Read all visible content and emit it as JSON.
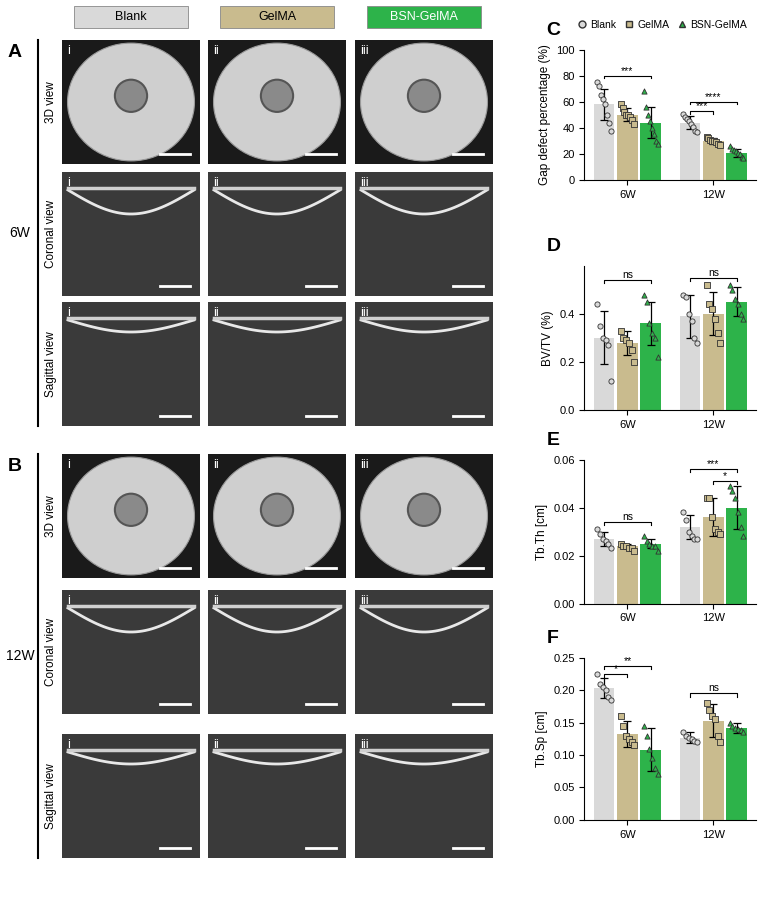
{
  "image_panels": {
    "panel_labels": [
      "A",
      "B"
    ],
    "timepoints": [
      "6W",
      "12W"
    ],
    "groups": [
      "Blank",
      "GelMA",
      "BSN-GelMA"
    ],
    "views": [
      "3D view",
      "Coronal view",
      "Sagittal view"
    ],
    "columns": [
      "i",
      "ii",
      "iii"
    ]
  },
  "chart_data": [
    {
      "type": "bar",
      "panel_label": "C",
      "ylabel": "Gap defect percentage (%)",
      "categories": [
        "6W",
        "12W"
      ],
      "ylim": [
        0,
        100
      ],
      "yticks": [
        0,
        20,
        40,
        60,
        80,
        100
      ],
      "legend": "upper center",
      "series": [
        {
          "name": "Blank",
          "color": "#d9d9d9",
          "marker": "circle",
          "values": [
            58,
            44
          ],
          "errors": [
            12,
            5
          ],
          "points": [
            [
              75,
              72,
              65,
              62,
              58,
              50,
              44,
              38
            ],
            [
              51,
              48,
              47,
              45,
              43,
              41,
              38,
              37
            ]
          ]
        },
        {
          "name": "GelMA",
          "color": "#c9bb8e",
          "marker": "square",
          "values": [
            50,
            30
          ],
          "errors": [
            5,
            2
          ],
          "points": [
            [
              58,
              55,
              52,
              50,
              50,
              48,
              46,
              43
            ],
            [
              33,
              32,
              31,
              30,
              30,
              29,
              28,
              27
            ]
          ]
        },
        {
          "name": "BSN-GelMA",
          "color": "#2db34a",
          "marker": "triangle",
          "values": [
            44,
            21
          ],
          "errors": [
            12,
            3
          ],
          "points": [
            [
              68,
              56,
              50,
              45,
              40,
              35,
              30,
              28
            ],
            [
              26,
              24,
              23,
              22,
              21,
              20,
              18,
              17
            ]
          ]
        }
      ],
      "significance": [
        {
          "category": "6W",
          "from": "Blank",
          "to": "BSN-GelMA",
          "label": "***",
          "y": 80
        },
        {
          "category": "12W",
          "from": "Blank",
          "to": "GelMA",
          "label": "***",
          "y": 53
        },
        {
          "category": "12W",
          "from": "Blank",
          "to": "BSN-GelMA",
          "label": "****",
          "y": 60
        }
      ]
    },
    {
      "type": "bar",
      "panel_label": "D",
      "ylabel": "BV/TV (%)",
      "categories": [
        "6W",
        "12W"
      ],
      "ylim": [
        0,
        0.6
      ],
      "yticks": [
        {
          "value": 0,
          "label": "0.0"
        },
        {
          "value": 0.2,
          "label": "0.2"
        },
        {
          "value": 0.4,
          "label": "0.4"
        }
      ],
      "series": [
        {
          "name": "Blank",
          "color": "#d9d9d9",
          "marker": "circle",
          "values": [
            0.3,
            0.39
          ],
          "errors": [
            0.11,
            0.09
          ],
          "points": [
            [
              0.44,
              0.35,
              0.3,
              0.29,
              0.27,
              0.12
            ],
            [
              0.48,
              0.47,
              0.4,
              0.37,
              0.3,
              0.28
            ]
          ]
        },
        {
          "name": "GelMA",
          "color": "#c9bb8e",
          "marker": "square",
          "values": [
            0.28,
            0.4
          ],
          "errors": [
            0.05,
            0.09
          ],
          "points": [
            [
              0.33,
              0.3,
              0.29,
              0.28,
              0.25,
              0.2
            ],
            [
              0.52,
              0.44,
              0.42,
              0.38,
              0.32,
              0.28
            ]
          ]
        },
        {
          "name": "BSN-GelMA",
          "color": "#2db34a",
          "marker": "triangle",
          "values": [
            0.36,
            0.45
          ],
          "errors": [
            0.09,
            0.06
          ],
          "points": [
            [
              0.48,
              0.45,
              0.36,
              0.32,
              0.3,
              0.22
            ],
            [
              0.52,
              0.5,
              0.46,
              0.44,
              0.4,
              0.38
            ]
          ]
        }
      ],
      "significance": [
        {
          "category": "6W",
          "from": "Blank",
          "to": "BSN-GelMA",
          "label": "ns",
          "y": 0.54
        },
        {
          "category": "12W",
          "from": "Blank",
          "to": "BSN-GelMA",
          "label": "ns",
          "y": 0.55
        }
      ]
    },
    {
      "type": "bar",
      "panel_label": "E",
      "ylabel": "Tb.Th [cm]",
      "categories": [
        "6W",
        "12W"
      ],
      "ylim": [
        0,
        0.06
      ],
      "yticks": [
        {
          "value": 0,
          "label": "0.00"
        },
        {
          "value": 0.02,
          "label": "0.02"
        },
        {
          "value": 0.04,
          "label": "0.04"
        },
        {
          "value": 0.06,
          "label": "0.06"
        }
      ],
      "series": [
        {
          "name": "Blank",
          "color": "#d9d9d9",
          "marker": "circle",
          "values": [
            0.027,
            0.032
          ],
          "errors": [
            0.003,
            0.005
          ],
          "points": [
            [
              0.031,
              0.029,
              0.027,
              0.026,
              0.025,
              0.023
            ],
            [
              0.038,
              0.035,
              0.03,
              0.028,
              0.027,
              0.027
            ]
          ]
        },
        {
          "name": "GelMA",
          "color": "#c9bb8e",
          "marker": "square",
          "values": [
            0.024,
            0.036
          ],
          "errors": [
            0.001,
            0.008
          ],
          "points": [
            [
              0.025,
              0.024,
              0.024,
              0.023,
              0.023,
              0.022
            ],
            [
              0.044,
              0.044,
              0.036,
              0.031,
              0.03,
              0.029
            ]
          ]
        },
        {
          "name": "BSN-GelMA",
          "color": "#2db34a",
          "marker": "triangle",
          "values": [
            0.025,
            0.04
          ],
          "errors": [
            0.002,
            0.009
          ],
          "points": [
            [
              0.028,
              0.026,
              0.025,
              0.024,
              0.024,
              0.022
            ],
            [
              0.049,
              0.047,
              0.044,
              0.038,
              0.032,
              0.028
            ]
          ]
        }
      ],
      "significance": [
        {
          "category": "6W",
          "from": "Blank",
          "to": "BSN-GelMA",
          "label": "ns",
          "y": 0.034
        },
        {
          "category": "12W",
          "from": "GelMA",
          "to": "BSN-GelMA",
          "label": "*",
          "y": 0.051
        },
        {
          "category": "12W",
          "from": "Blank",
          "to": "BSN-GelMA",
          "label": "***",
          "y": 0.056
        }
      ]
    },
    {
      "type": "bar",
      "panel_label": "F",
      "ylabel": "Tb.Sp [cm]",
      "categories": [
        "6W",
        "12W"
      ],
      "ylim": [
        0,
        0.25
      ],
      "yticks": [
        {
          "value": 0,
          "label": "0.00"
        },
        {
          "value": 0.05,
          "label": "0.05"
        },
        {
          "value": 0.1,
          "label": "0.10"
        },
        {
          "value": 0.15,
          "label": "0.15"
        },
        {
          "value": 0.2,
          "label": "0.20"
        },
        {
          "value": 0.25,
          "label": "0.25"
        }
      ],
      "series": [
        {
          "name": "Blank",
          "color": "#d9d9d9",
          "marker": "circle",
          "values": [
            0.203,
            0.127
          ],
          "errors": [
            0.015,
            0.008
          ],
          "points": [
            [
              0.225,
              0.21,
              0.205,
              0.2,
              0.19,
              0.185
            ],
            [
              0.135,
              0.13,
              0.127,
              0.125,
              0.122,
              0.12
            ]
          ]
        },
        {
          "name": "GelMA",
          "color": "#c9bb8e",
          "marker": "square",
          "values": [
            0.133,
            0.153
          ],
          "errors": [
            0.02,
            0.025
          ],
          "points": [
            [
              0.16,
              0.145,
              0.13,
              0.125,
              0.12,
              0.115
            ],
            [
              0.18,
              0.17,
              0.16,
              0.155,
              0.13,
              0.12
            ]
          ]
        },
        {
          "name": "BSN-GelMA",
          "color": "#2db34a",
          "marker": "triangle",
          "values": [
            0.108,
            0.142
          ],
          "errors": [
            0.033,
            0.008
          ],
          "points": [
            [
              0.145,
              0.13,
              0.11,
              0.095,
              0.08,
              0.07
            ],
            [
              0.15,
              0.145,
              0.142,
              0.14,
              0.138,
              0.135
            ]
          ]
        }
      ],
      "significance": [
        {
          "category": "6W",
          "from": "Blank",
          "to": "GelMA",
          "label": "*",
          "y": 0.225
        },
        {
          "category": "6W",
          "from": "Blank",
          "to": "BSN-GelMA",
          "label": "**",
          "y": 0.237
        },
        {
          "category": "12W",
          "from": "Blank",
          "to": "BSN-GelMA",
          "label": "ns",
          "y": 0.195
        }
      ]
    }
  ]
}
